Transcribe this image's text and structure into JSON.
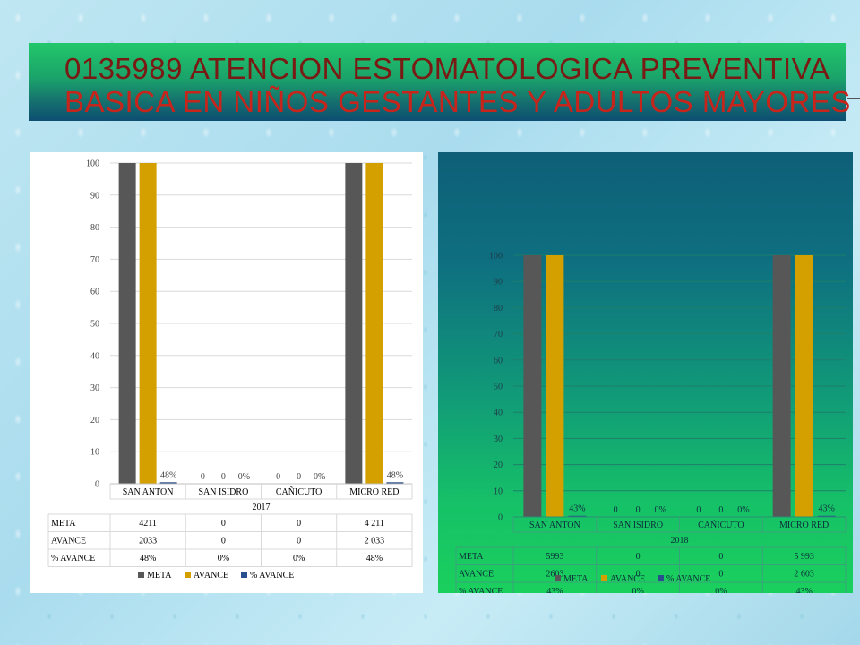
{
  "title": {
    "line1": "0135989 ATENCION ESTOMATOLOGICA PREVENTIVA",
    "line2": "BASICA EN NIÑOS GESTANTES Y ADULTOS MAYORES"
  },
  "colors": {
    "meta": "#575757",
    "avance": "#d4a000",
    "pct_avance": "#2a4f8f"
  },
  "chart_data": [
    {
      "type": "bar",
      "title": "",
      "year": "2017",
      "categories": [
        "SAN ANTON",
        "SAN ISIDRO",
        "CAÑICUTO",
        "MICRO RED"
      ],
      "ylim": [
        0,
        100
      ],
      "yticks": [
        "0",
        "10",
        "20",
        "30",
        "40",
        "50",
        "60",
        "70",
        "80",
        "90",
        "100"
      ],
      "grid": true,
      "legend_position": "bottom",
      "series": [
        {
          "name": "META",
          "values": [
            100,
            0,
            0,
            100
          ],
          "labels": [
            "",
            "0",
            "0",
            ""
          ],
          "table": [
            "4211",
            "0",
            "0",
            "4 211"
          ]
        },
        {
          "name": "AVANCE",
          "values": [
            100,
            0,
            0,
            100
          ],
          "labels": [
            "",
            "0",
            "0",
            ""
          ],
          "table": [
            "2033",
            "0",
            "0",
            "2 033"
          ]
        },
        {
          "name": "% AVANCE",
          "values": [
            0.48,
            0,
            0,
            0.48
          ],
          "labels": [
            "48%",
            "0%",
            "0%",
            "48%"
          ],
          "table": [
            "48%",
            "0%",
            "0%",
            "48%"
          ]
        }
      ]
    },
    {
      "type": "bar",
      "title": "",
      "year": "2018",
      "categories": [
        "SAN ANTON",
        "SAN ISIDRO",
        "CAÑICUTO",
        "MICRO RED"
      ],
      "ylim": [
        0,
        100
      ],
      "yticks": [
        "0",
        "10",
        "20",
        "30",
        "40",
        "50",
        "60",
        "70",
        "80",
        "90",
        "100"
      ],
      "grid": true,
      "legend_position": "bottom",
      "series": [
        {
          "name": "META",
          "values": [
            100,
            0,
            0,
            100
          ],
          "labels": [
            "",
            "0",
            "0",
            ""
          ],
          "table": [
            "5993",
            "0",
            "0",
            "5 993"
          ]
        },
        {
          "name": "AVANCE",
          "values": [
            100,
            0,
            0,
            100
          ],
          "labels": [
            "",
            "0",
            "0",
            ""
          ],
          "table": [
            "2603",
            "0",
            "0",
            "2 603"
          ]
        },
        {
          "name": "% AVANCE",
          "values": [
            0.43,
            0,
            0,
            0.43
          ],
          "labels": [
            "43%",
            "0%",
            "0%",
            "43%"
          ],
          "table": [
            "43%",
            "0%",
            "0%",
            "43%"
          ]
        }
      ]
    }
  ]
}
